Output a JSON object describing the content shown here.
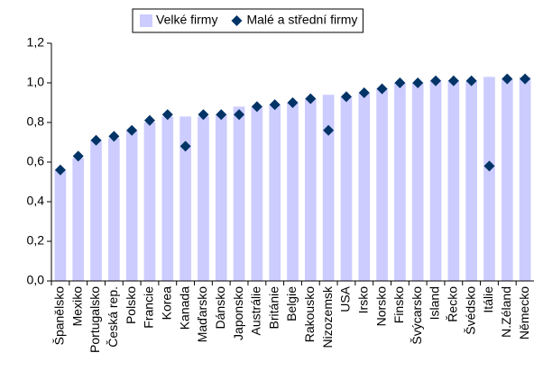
{
  "chart_data": {
    "type": "bar",
    "categories": [
      "Španělsko",
      "Mexiko",
      "Portugalsko",
      "Česká rep.",
      "Polsko",
      "Francie",
      "Korea",
      "Kanada",
      "Maďarsko",
      "Dánsko",
      "Japonsko",
      "Austrálie",
      "Británie",
      "Belgie",
      "Rakousko",
      "Nizozemsk",
      "USA",
      "Irsko",
      "Norsko",
      "Finsko",
      "Švýcarsko",
      "Island",
      "Řecko",
      "Švédsko",
      "Itálie",
      "N.Zéland",
      "Německo"
    ],
    "series": [
      {
        "name": "Velké firmy",
        "type": "bar",
        "color": "#ccccff",
        "values": [
          0.56,
          0.62,
          0.71,
          0.72,
          0.76,
          0.8,
          0.83,
          0.83,
          0.83,
          0.84,
          0.88,
          0.88,
          0.89,
          0.9,
          0.92,
          0.94,
          0.93,
          0.95,
          0.97,
          1.0,
          1.0,
          1.01,
          1.01,
          1.01,
          1.03,
          1.02,
          1.03
        ]
      },
      {
        "name": "Malé a střední firmy",
        "type": "scatter",
        "color": "#003366",
        "values": [
          0.56,
          0.63,
          0.71,
          0.73,
          0.76,
          0.81,
          0.84,
          0.68,
          0.84,
          0.84,
          0.84,
          0.88,
          0.89,
          0.9,
          0.92,
          0.76,
          0.93,
          0.95,
          0.97,
          1.0,
          1.0,
          1.01,
          1.01,
          1.01,
          0.58,
          1.02,
          1.02
        ]
      }
    ],
    "ylim": [
      0,
      1.2
    ],
    "yticks": [
      {
        "value": 0,
        "label": "0,0"
      },
      {
        "value": 0.2,
        "label": "0,2"
      },
      {
        "value": 0.4,
        "label": "0,4"
      },
      {
        "value": 0.6,
        "label": "0,6"
      },
      {
        "value": 0.8,
        "label": "0,8"
      },
      {
        "value": 1.0,
        "label": "1,0"
      },
      {
        "value": 1.2,
        "label": "1,2"
      }
    ],
    "legend": "top"
  }
}
